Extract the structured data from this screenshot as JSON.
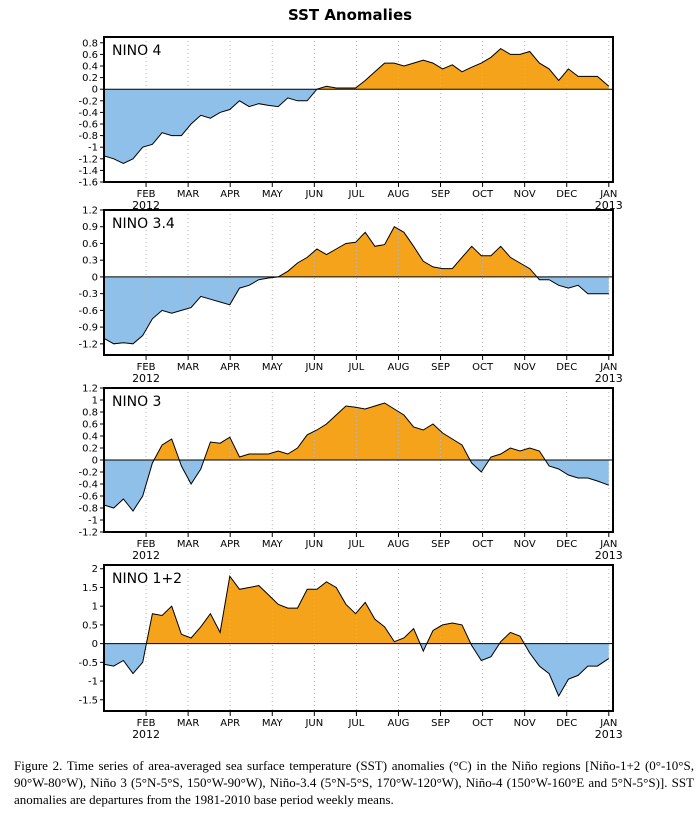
{
  "title": "SST Anomalies",
  "caption": "Figure 2. Time series of area-averaged sea surface temperature (SST) anomalies (°C) in the Niño regions [Niño-1+2 (0°-10°S, 90°W-80°W), Niño 3 (5°N-5°S, 150°W-90°W), Niño-3.4 (5°N-5°S, 170°W-120°W), Niño-4 (150°W-160°E and 5°N-5°S)]. SST anomalies are departures from the 1981-2010 base period weekly means.",
  "colors": {
    "positive": "#f5a31b",
    "negative": "#8fc0ea",
    "frame": "#000000",
    "grid": "#b8b8b8"
  },
  "month_labels": [
    "FEB",
    "MAR",
    "APR",
    "MAY",
    "JUN",
    "JUL",
    "AUG",
    "SEP",
    "OCT",
    "NOV",
    "DEC",
    "JAN"
  ],
  "year_labels": {
    "start": "2012",
    "end": "2013"
  },
  "chart_data": [
    {
      "type": "area",
      "label": "NINO 4",
      "ylim": [
        -1.6,
        0.9
      ],
      "yticks": [
        "0.8",
        "0.6",
        "0.4",
        "0.2",
        "0",
        "-0.2",
        "-0.4",
        "-0.6",
        "-0.8",
        "-1",
        "-1.2",
        "-1.4",
        "-1.6"
      ],
      "ytick_values": [
        0.8,
        0.6,
        0.4,
        0.2,
        0,
        -0.2,
        -0.4,
        -0.6,
        -0.8,
        -1,
        -1.2,
        -1.4,
        -1.6
      ],
      "xlim": [
        0,
        12.1
      ],
      "grid": "vertical-dotted",
      "x": [
        0,
        0.23,
        0.46,
        0.69,
        0.92,
        1.15,
        1.38,
        1.61,
        1.84,
        2.07,
        2.3,
        2.53,
        2.76,
        2.99,
        3.22,
        3.45,
        3.68,
        3.91,
        4.14,
        4.37,
        4.6,
        4.83,
        5.06,
        5.29,
        5.52,
        5.75,
        5.98,
        6.21,
        6.44,
        6.67,
        6.9,
        7.13,
        7.36,
        7.59,
        7.82,
        8.05,
        8.28,
        8.51,
        8.74,
        8.97,
        9.2,
        9.43,
        9.66,
        9.89,
        10.12,
        10.35,
        10.58,
        10.81,
        11.04,
        11.27,
        11.5,
        11.73,
        12
      ],
      "y": [
        -1.15,
        -1.2,
        -1.28,
        -1.2,
        -1.0,
        -0.95,
        -0.75,
        -0.8,
        -0.8,
        -0.6,
        -0.45,
        -0.5,
        -0.4,
        -0.35,
        -0.2,
        -0.3,
        -0.25,
        -0.28,
        -0.3,
        -0.15,
        -0.2,
        -0.2,
        0.0,
        0.05,
        0.02,
        0.02,
        0.02,
        0.15,
        0.3,
        0.45,
        0.45,
        0.4,
        0.45,
        0.5,
        0.45,
        0.35,
        0.42,
        0.3,
        0.38,
        0.45,
        0.55,
        0.7,
        0.6,
        0.6,
        0.65,
        0.45,
        0.35,
        0.15,
        0.35,
        0.22,
        0.22,
        0.22,
        0.05
      ]
    },
    {
      "type": "area",
      "label": "NINO 3.4",
      "ylim": [
        -1.4,
        1.2
      ],
      "yticks": [
        "1.2",
        "0.9",
        "0.6",
        "0.3",
        "0",
        "-0.3",
        "-0.6",
        "-0.9",
        "-1.2"
      ],
      "ytick_values": [
        1.2,
        0.9,
        0.6,
        0.3,
        0,
        -0.3,
        -0.6,
        -0.9,
        -1.2
      ],
      "xlim": [
        0,
        12.1
      ],
      "grid": "vertical-dotted",
      "x": [
        0,
        0.23,
        0.46,
        0.69,
        0.92,
        1.15,
        1.38,
        1.61,
        1.84,
        2.07,
        2.3,
        2.53,
        2.76,
        2.99,
        3.22,
        3.45,
        3.68,
        3.91,
        4.14,
        4.37,
        4.6,
        4.83,
        5.06,
        5.29,
        5.52,
        5.75,
        5.98,
        6.21,
        6.44,
        6.67,
        6.9,
        7.13,
        7.36,
        7.59,
        7.82,
        8.05,
        8.28,
        8.51,
        8.74,
        8.97,
        9.2,
        9.43,
        9.66,
        9.89,
        10.12,
        10.35,
        10.58,
        10.81,
        11.04,
        11.27,
        11.5,
        11.73,
        12
      ],
      "y": [
        -1.1,
        -1.2,
        -1.18,
        -1.2,
        -1.05,
        -0.75,
        -0.6,
        -0.65,
        -0.6,
        -0.55,
        -0.35,
        -0.4,
        -0.45,
        -0.5,
        -0.2,
        -0.15,
        -0.05,
        -0.02,
        0.0,
        0.1,
        0.25,
        0.35,
        0.5,
        0.4,
        0.5,
        0.6,
        0.62,
        0.8,
        0.55,
        0.58,
        0.9,
        0.8,
        0.55,
        0.28,
        0.18,
        0.15,
        0.15,
        0.35,
        0.55,
        0.38,
        0.38,
        0.55,
        0.35,
        0.25,
        0.15,
        -0.05,
        -0.05,
        -0.15,
        -0.2,
        -0.15,
        -0.3,
        -0.3,
        -0.3
      ]
    },
    {
      "type": "area",
      "label": "NINO 3",
      "ylim": [
        -1.2,
        1.2
      ],
      "yticks": [
        "1.2",
        "1",
        "0.8",
        "0.6",
        "0.4",
        "0.2",
        "0",
        "-0.2",
        "-0.4",
        "-0.6",
        "-0.8",
        "-1",
        "-1.2"
      ],
      "ytick_values": [
        1.2,
        1,
        0.8,
        0.6,
        0.4,
        0.2,
        0,
        -0.2,
        -0.4,
        -0.6,
        -0.8,
        -1,
        -1.2
      ],
      "xlim": [
        0,
        12.1
      ],
      "grid": "vertical-dotted",
      "x": [
        0,
        0.23,
        0.46,
        0.69,
        0.92,
        1.15,
        1.38,
        1.61,
        1.84,
        2.07,
        2.3,
        2.53,
        2.76,
        2.99,
        3.22,
        3.45,
        3.68,
        3.91,
        4.14,
        4.37,
        4.6,
        4.83,
        5.06,
        5.29,
        5.52,
        5.75,
        5.98,
        6.21,
        6.44,
        6.67,
        6.9,
        7.13,
        7.36,
        7.59,
        7.82,
        8.05,
        8.28,
        8.51,
        8.74,
        8.97,
        9.2,
        9.43,
        9.66,
        9.89,
        10.12,
        10.35,
        10.58,
        10.81,
        11.04,
        11.27,
        11.5,
        11.73,
        12
      ],
      "y": [
        -0.75,
        -0.8,
        -0.65,
        -0.85,
        -0.6,
        -0.05,
        0.25,
        0.35,
        -0.1,
        -0.4,
        -0.15,
        0.3,
        0.28,
        0.38,
        0.05,
        0.1,
        0.1,
        0.1,
        0.15,
        0.1,
        0.2,
        0.42,
        0.5,
        0.6,
        0.75,
        0.9,
        0.88,
        0.85,
        0.9,
        0.95,
        0.85,
        0.75,
        0.55,
        0.5,
        0.6,
        0.45,
        0.35,
        0.25,
        -0.05,
        -0.2,
        0.05,
        0.1,
        0.2,
        0.15,
        0.2,
        0.15,
        -0.1,
        -0.15,
        -0.25,
        -0.3,
        -0.3,
        -0.35,
        -0.42
      ]
    },
    {
      "type": "area",
      "label": "NINO 1+2",
      "ylim": [
        -1.8,
        2.1
      ],
      "yticks": [
        "2",
        "1.5",
        "1",
        "0.5",
        "0",
        "-0.5",
        "-1",
        "-1.5"
      ],
      "ytick_values": [
        2,
        1.5,
        1,
        0.5,
        0,
        -0.5,
        -1,
        -1.5
      ],
      "xlim": [
        0,
        12.1
      ],
      "grid": "vertical-dotted",
      "x": [
        0,
        0.23,
        0.46,
        0.69,
        0.92,
        1.15,
        1.38,
        1.61,
        1.84,
        2.07,
        2.3,
        2.53,
        2.76,
        2.99,
        3.22,
        3.45,
        3.68,
        3.91,
        4.14,
        4.37,
        4.6,
        4.83,
        5.06,
        5.29,
        5.52,
        5.75,
        5.98,
        6.21,
        6.44,
        6.67,
        6.9,
        7.13,
        7.36,
        7.59,
        7.82,
        8.05,
        8.28,
        8.51,
        8.74,
        8.97,
        9.2,
        9.43,
        9.66,
        9.89,
        10.12,
        10.35,
        10.58,
        10.81,
        11.04,
        11.27,
        11.5,
        11.73,
        12
      ],
      "y": [
        -0.55,
        -0.6,
        -0.45,
        -0.8,
        -0.5,
        0.8,
        0.75,
        1.0,
        0.25,
        0.15,
        0.45,
        0.8,
        0.3,
        1.8,
        1.45,
        1.5,
        1.55,
        1.3,
        1.05,
        0.95,
        0.95,
        1.45,
        1.45,
        1.65,
        1.5,
        1.05,
        0.8,
        1.1,
        0.65,
        0.45,
        0.05,
        0.15,
        0.4,
        -0.2,
        0.35,
        0.5,
        0.55,
        0.5,
        -0.05,
        -0.45,
        -0.35,
        0.05,
        0.3,
        0.2,
        -0.25,
        -0.6,
        -0.8,
        -1.4,
        -0.95,
        -0.85,
        -0.6,
        -0.6,
        -0.4
      ]
    }
  ]
}
